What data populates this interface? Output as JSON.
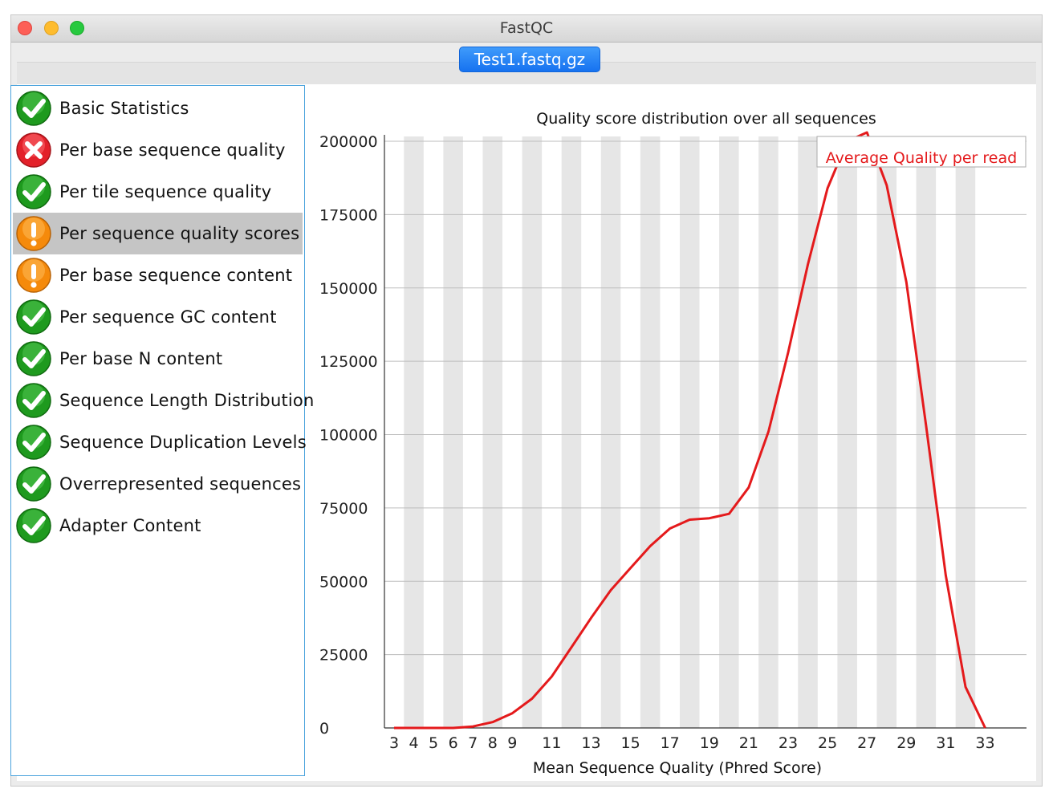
{
  "window": {
    "title": "FastQC"
  },
  "tabs": [
    {
      "label": "Test1.fastq.gz",
      "active": true
    }
  ],
  "modules": [
    {
      "label": "Basic Statistics",
      "status": "pass",
      "icon": "check-icon"
    },
    {
      "label": "Per base sequence quality",
      "status": "fail",
      "icon": "cross-icon"
    },
    {
      "label": "Per tile sequence quality",
      "status": "pass",
      "icon": "check-icon"
    },
    {
      "label": "Per sequence quality scores",
      "status": "warn",
      "icon": "warning-icon",
      "selected": true
    },
    {
      "label": "Per base sequence content",
      "status": "warn",
      "icon": "warning-icon"
    },
    {
      "label": "Per sequence GC content",
      "status": "pass",
      "icon": "check-icon"
    },
    {
      "label": "Per base N content",
      "status": "pass",
      "icon": "check-icon"
    },
    {
      "label": "Sequence Length Distribution",
      "status": "pass",
      "icon": "check-icon"
    },
    {
      "label": "Sequence Duplication Levels",
      "status": "pass",
      "icon": "check-icon"
    },
    {
      "label": "Overrepresented sequences",
      "status": "pass",
      "icon": "check-icon"
    },
    {
      "label": "Adapter Content",
      "status": "pass",
      "icon": "check-icon"
    }
  ],
  "colors": {
    "pass": "#1fa41f",
    "fail": "#e8232a",
    "warn": "#f7931e",
    "line": "#e41a1c",
    "band": "#e6e6e6",
    "grid": "#bdbdbd"
  },
  "chart_data": {
    "type": "line",
    "title": "Quality score distribution over all sequences",
    "xlabel": "Mean Sequence Quality (Phred Score)",
    "ylabel": "",
    "legend": {
      "label": "Average Quality per read",
      "placement": "top-right"
    },
    "x_tick_labels": [
      "3",
      "4",
      "5",
      "6",
      "7",
      "8",
      "9",
      "11",
      "13",
      "15",
      "17",
      "19",
      "21",
      "23",
      "25",
      "27",
      "29",
      "31",
      "33"
    ],
    "y_ticks": [
      0,
      25000,
      50000,
      75000,
      100000,
      125000,
      150000,
      175000,
      200000
    ],
    "xlim": [
      3,
      33
    ],
    "ylim": [
      0,
      200000
    ],
    "alternating_bands": true,
    "grid": true,
    "series": [
      {
        "name": "Average Quality per read",
        "x": [
          3,
          4,
          5,
          6,
          7,
          8,
          9,
          10,
          11,
          12,
          13,
          14,
          15,
          16,
          17,
          18,
          19,
          20,
          21,
          22,
          23,
          24,
          25,
          26,
          27,
          28,
          29,
          30,
          31,
          32,
          33
        ],
        "y": [
          0,
          0,
          0,
          0,
          500,
          2000,
          5000,
          10000,
          17500,
          27500,
          37500,
          47000,
          54500,
          62000,
          68000,
          71000,
          71500,
          73000,
          82000,
          101000,
          128000,
          158000,
          184000,
          200000,
          203000,
          185000,
          152000,
          103000,
          52000,
          14000,
          0
        ]
      }
    ]
  }
}
